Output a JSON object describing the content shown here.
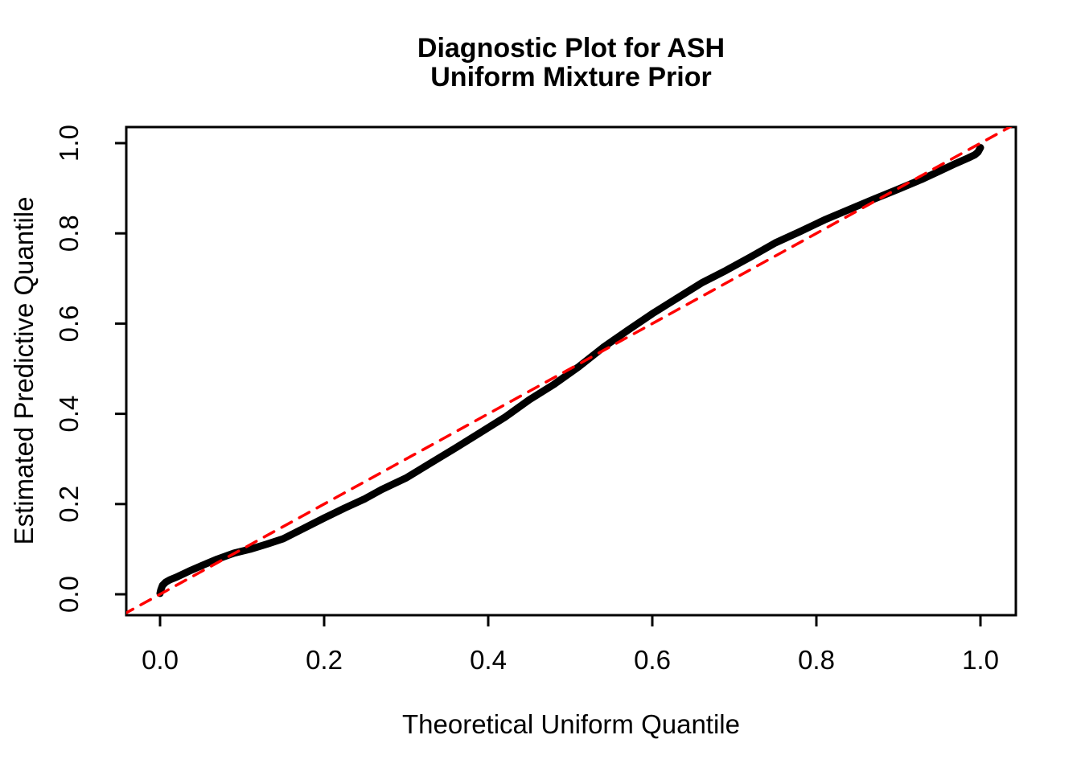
{
  "chart_data": {
    "type": "line",
    "title_lines": [
      "Diagnostic Plot for ASH",
      "Uniform Mixture Prior"
    ],
    "xlabel": "Theoretical Uniform Quantile",
    "ylabel": "Estimated Predictive Quantile",
    "x_ticks": [
      0.0,
      0.2,
      0.4,
      0.6,
      0.8,
      1.0
    ],
    "y_ticks": [
      0.0,
      0.2,
      0.4,
      0.6,
      0.8,
      1.0
    ],
    "x_tick_labels": [
      "0.0",
      "0.2",
      "0.4",
      "0.6",
      "0.8",
      "1.0"
    ],
    "y_tick_labels": [
      "0.0",
      "0.2",
      "0.4",
      "0.6",
      "0.8",
      "1.0"
    ],
    "xlim": [
      -0.041,
      1.043
    ],
    "ylim": [
      -0.046,
      1.036
    ],
    "grid": false,
    "legend": "none",
    "series": [
      {
        "name": "estimated-vs-theoretical-quantiles",
        "style": "solid",
        "color": "#000000",
        "line_width": 9,
        "points": [
          [
            0.0,
            0.002
          ],
          [
            0.001,
            0.01
          ],
          [
            0.003,
            0.02
          ],
          [
            0.007,
            0.027
          ],
          [
            0.012,
            0.032
          ],
          [
            0.02,
            0.038
          ],
          [
            0.035,
            0.051
          ],
          [
            0.05,
            0.063
          ],
          [
            0.07,
            0.078
          ],
          [
            0.09,
            0.091
          ],
          [
            0.11,
            0.1
          ],
          [
            0.13,
            0.111
          ],
          [
            0.15,
            0.123
          ],
          [
            0.175,
            0.146
          ],
          [
            0.2,
            0.169
          ],
          [
            0.225,
            0.191
          ],
          [
            0.25,
            0.212
          ],
          [
            0.27,
            0.232
          ],
          [
            0.3,
            0.258
          ],
          [
            0.33,
            0.291
          ],
          [
            0.36,
            0.324
          ],
          [
            0.39,
            0.358
          ],
          [
            0.42,
            0.392
          ],
          [
            0.45,
            0.431
          ],
          [
            0.48,
            0.465
          ],
          [
            0.51,
            0.504
          ],
          [
            0.54,
            0.547
          ],
          [
            0.57,
            0.585
          ],
          [
            0.6,
            0.622
          ],
          [
            0.63,
            0.656
          ],
          [
            0.66,
            0.69
          ],
          [
            0.69,
            0.718
          ],
          [
            0.72,
            0.748
          ],
          [
            0.75,
            0.779
          ],
          [
            0.78,
            0.804
          ],
          [
            0.81,
            0.83
          ],
          [
            0.84,
            0.853
          ],
          [
            0.87,
            0.876
          ],
          [
            0.9,
            0.898
          ],
          [
            0.93,
            0.921
          ],
          [
            0.95,
            0.938
          ],
          [
            0.97,
            0.955
          ],
          [
            0.985,
            0.967
          ],
          [
            0.993,
            0.974
          ],
          [
            0.997,
            0.98
          ],
          [
            1.0,
            0.99
          ]
        ]
      },
      {
        "name": "identity-reference-line",
        "style": "dashed",
        "color": "#FF0000",
        "line_width": 3.5,
        "points": [
          [
            -0.045,
            -0.045
          ],
          [
            1.045,
            1.045
          ]
        ]
      }
    ]
  },
  "colors": {
    "background": "#FFFFFF",
    "axis": "#000000",
    "curve": "#000000",
    "reference": "#FF0000"
  }
}
